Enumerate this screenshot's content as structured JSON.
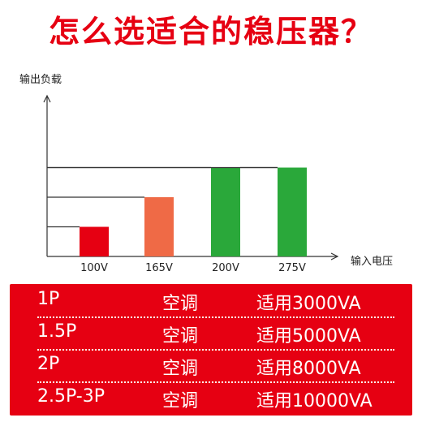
{
  "title": "怎么选适合的稳压器？",
  "chart_data": {
    "type": "bar",
    "ylabel": "输出负载",
    "xlabel": "输入电压",
    "categories": [
      "100V",
      "165V",
      "200V",
      "275V"
    ],
    "values": [
      1,
      2,
      3,
      3
    ],
    "ylim": [
      0,
      3.2
    ],
    "colors": [
      "#e60012",
      "#ef6a46",
      "#2aa83a",
      "#2aa83a"
    ]
  },
  "table": {
    "rows": [
      {
        "power": "1P",
        "type": "空调",
        "capacity": "适用3000VA"
      },
      {
        "power": "1.5P",
        "type": "空调",
        "capacity": "适用5000VA"
      },
      {
        "power": "2P",
        "type": "空调",
        "capacity": "适用8000VA"
      },
      {
        "power": "2.5P-3P",
        "type": "空调",
        "capacity": "适用10000VA"
      }
    ]
  }
}
